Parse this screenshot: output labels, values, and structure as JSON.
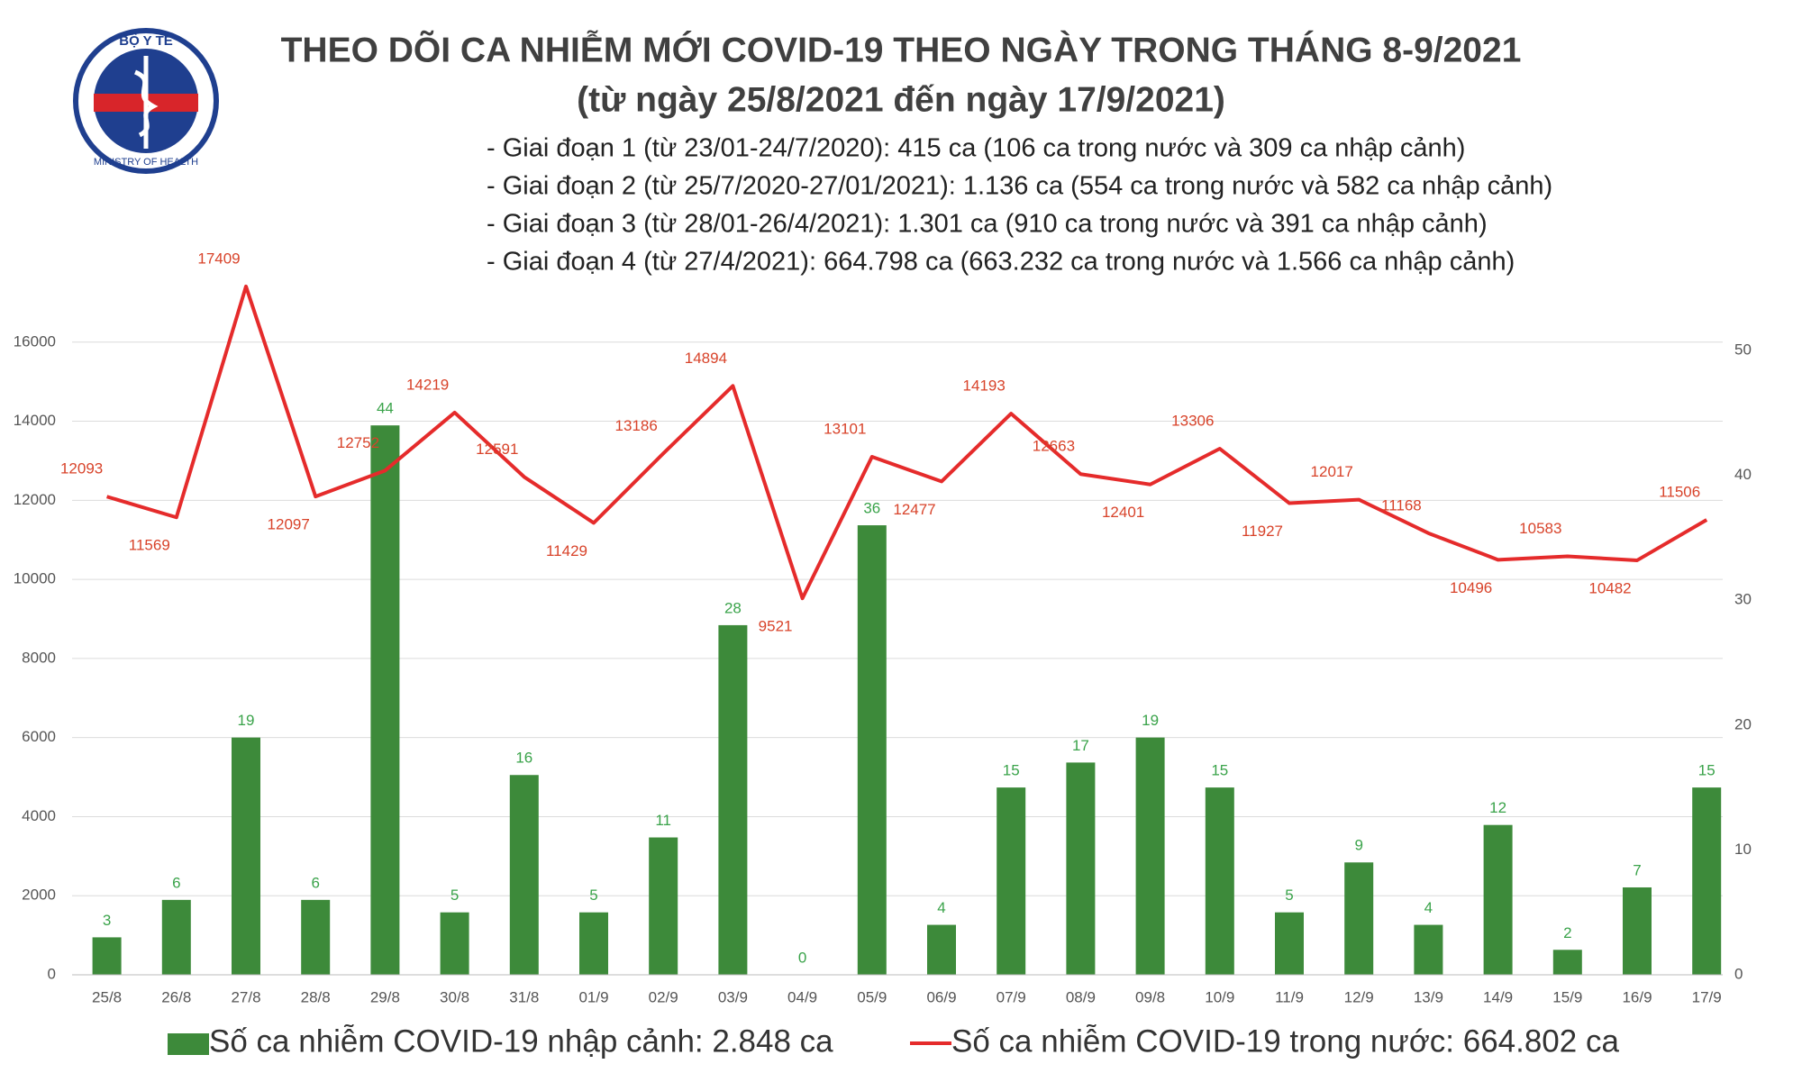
{
  "logo": {
    "top": "BỘ Y TẾ",
    "bottom": "MINISTRY OF HEALTH"
  },
  "chart_data": {
    "type": "bar-line",
    "title": "THEO DÕI CA NHIỄM MỚI COVID-19 THEO NGÀY TRONG THÁNG 8-9/2021",
    "subtitle": "(từ ngày 25/8/2021 đến ngày 17/9/2021)",
    "notes": [
      "- Giai đoạn 1 (từ 23/01-24/7/2020): 415 ca (106 ca trong nước và 309 ca nhập cảnh)",
      "- Giai đoạn 2 (từ 25/7/2020-27/01/2021): 1.136 ca (554 ca trong nước và 582 ca nhập cảnh)",
      "- Giai đoạn 3 (từ 28/01-26/4/2021): 1.301 ca (910 ca trong nước và 391 ca nhập cảnh)",
      "- Giai đoạn 4 (từ 27/4/2021): 664.798 ca (663.232 ca trong nước và 1.566 ca nhập cảnh)"
    ],
    "categories": [
      "25/8",
      "26/8",
      "27/8",
      "28/8",
      "29/8",
      "30/8",
      "31/8",
      "01/9",
      "02/9",
      "03/9",
      "04/9",
      "05/9",
      "06/9",
      "07/9",
      "08/9",
      "09/8",
      "10/9",
      "11/9",
      "12/9",
      "13/9",
      "14/9",
      "15/9",
      "16/9",
      "17/9"
    ],
    "series": [
      {
        "name": "Số ca nhiễm COVID-19 nhập cảnh: 2.848 ca",
        "type": "bar",
        "axis": "y2",
        "color": "#3d8a3a",
        "label_color": "#3aa34a",
        "values": [
          3,
          6,
          19,
          6,
          44,
          5,
          16,
          5,
          11,
          28,
          0,
          36,
          4,
          15,
          17,
          19,
          15,
          5,
          9,
          4,
          12,
          2,
          7,
          15
        ]
      },
      {
        "name": "Số ca nhiễm COVID-19 trong nước: 664.802 ca",
        "type": "line",
        "color": "#e52b2b",
        "label_color": "#d8432a",
        "values": [
          12093,
          11569,
          17409,
          12097,
          12752,
          14219,
          12591,
          11429,
          13186,
          14894,
          9521,
          13101,
          12477,
          14193,
          12663,
          12401,
          13306,
          11927,
          12017,
          11168,
          10496,
          10583,
          10482,
          11506
        ]
      }
    ],
    "ylim": [
      0,
      18000
    ],
    "yticks": [
      0,
      2000,
      4000,
      6000,
      8000,
      10000,
      12000,
      14000,
      16000
    ],
    "y2lim": [
      0,
      57
    ],
    "y2ticks": [
      0,
      10,
      20,
      30,
      40,
      50
    ],
    "grid": true
  }
}
